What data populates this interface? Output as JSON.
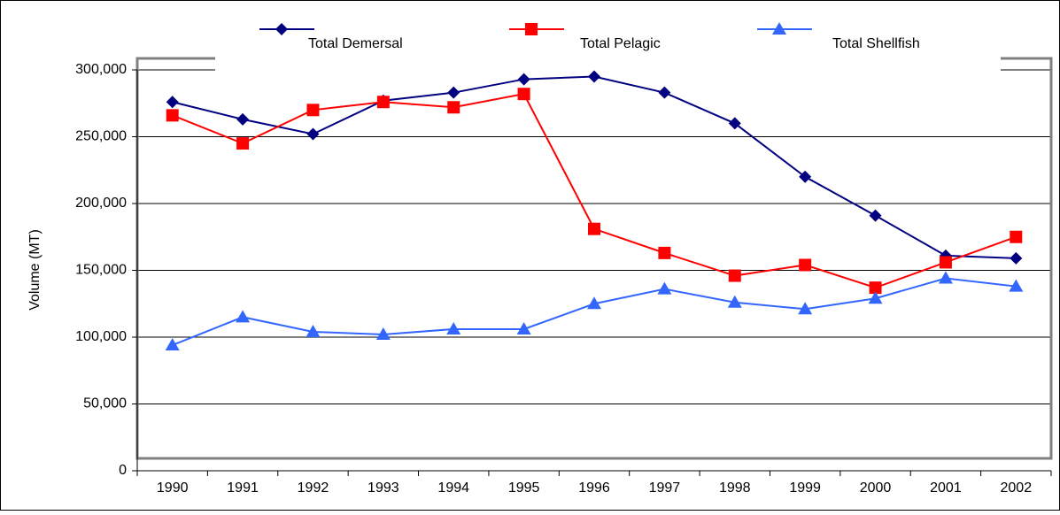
{
  "chart_data": {
    "type": "line",
    "y_label": "Volume (MT)",
    "categories": [
      "1990",
      "1991",
      "1992",
      "1993",
      "1994",
      "1995",
      "1996",
      "1997",
      "1998",
      "1999",
      "2000",
      "2001",
      "2002"
    ],
    "series": [
      {
        "name": "Total Demersal",
        "color": "#000080",
        "marker": "diamond",
        "values": [
          276000,
          263000,
          252000,
          277000,
          283000,
          293000,
          295000,
          283000,
          260000,
          220000,
          191000,
          161000,
          159000
        ]
      },
      {
        "name": "Total Pelagic",
        "color": "#ff0000",
        "marker": "square",
        "values": [
          266000,
          245000,
          270000,
          276000,
          272000,
          282000,
          181000,
          163000,
          146000,
          154000,
          137000,
          156000,
          175000
        ]
      },
      {
        "name": "Total Shellfish",
        "color": "#3366ff",
        "marker": "triangle",
        "values": [
          94000,
          115000,
          104000,
          102000,
          106000,
          106000,
          125000,
          136000,
          126000,
          121000,
          129000,
          144000,
          138000
        ]
      }
    ],
    "ylim": [
      0,
      300000
    ],
    "yticks": [
      0,
      {
        "value": 50000,
        "label": "50,000"
      },
      {
        "value": 100000,
        "label": "100,000"
      },
      {
        "value": 150000,
        "label": "150,000"
      },
      {
        "value": 200000,
        "label": "200,000"
      },
      {
        "value": 250000,
        "label": "250,000"
      },
      {
        "value": 300000,
        "label": "300,000"
      }
    ],
    "grid": true
  }
}
